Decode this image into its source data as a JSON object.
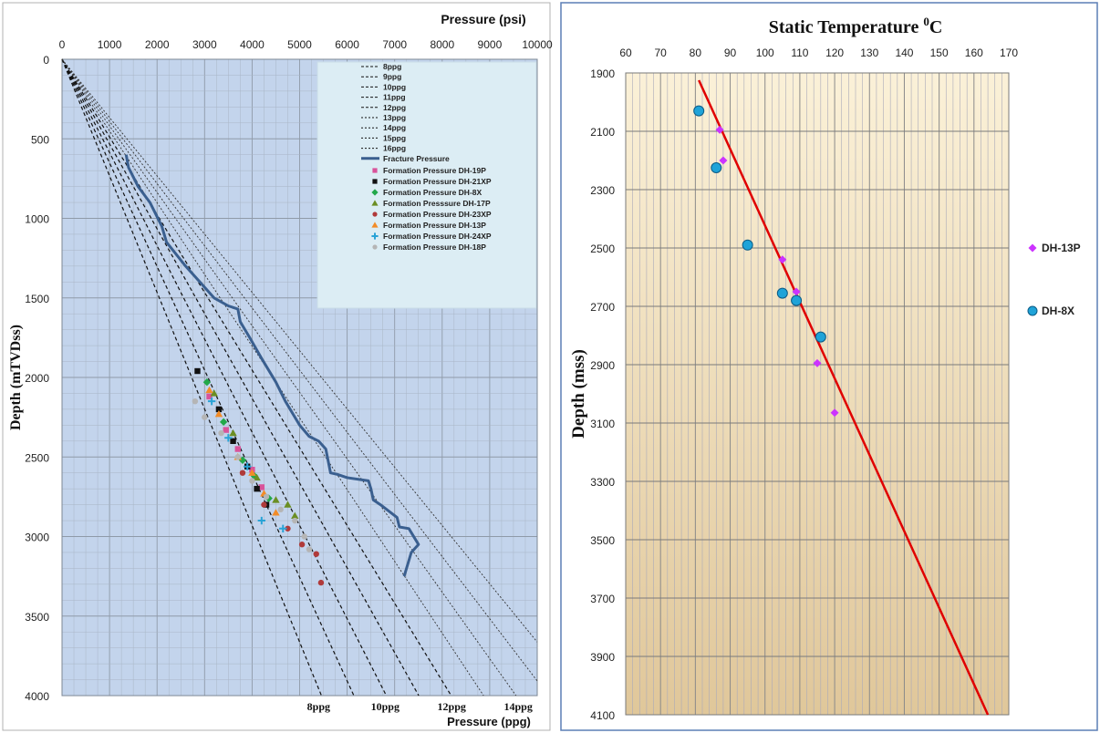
{
  "chart_data": [
    {
      "type": "line",
      "title": "",
      "xlabel_top": "Pressure (psi)",
      "xlabel_bottom": "Pressure (ppg)",
      "ylabel": "Depth (mTVDss)",
      "x_ticks": [
        0,
        1000,
        2000,
        3000,
        4000,
        5000,
        6000,
        7000,
        8000,
        9000,
        10000
      ],
      "x_ticks_text": [
        "0",
        "1000",
        "2000",
        "3000",
        "4000",
        "5000",
        "6000",
        "7000",
        "8000",
        "9000",
        "10000"
      ],
      "y_ticks": [
        0,
        500,
        1000,
        1500,
        2000,
        2500,
        3000,
        3500,
        4000
      ],
      "y_ticks_text": [
        "0",
        "500",
        "1000",
        "1500",
        "2000",
        "2500",
        "3000",
        "3500",
        "4000"
      ],
      "xlim": [
        0,
        10000
      ],
      "ylim": [
        4000,
        0
      ],
      "ppg_labels": [
        {
          "text": "8ppg",
          "psi": 5400
        },
        {
          "text": "10ppg",
          "psi": 6800
        },
        {
          "text": "12ppg",
          "psi": 8200
        },
        {
          "text": "14ppg",
          "psi": 9600
        }
      ],
      "gradient_lines": [
        {
          "name": "8ppg",
          "ppg": 8
        },
        {
          "name": "9ppg",
          "ppg": 9
        },
        {
          "name": "10ppg",
          "ppg": 10
        },
        {
          "name": "11ppg",
          "ppg": 11
        },
        {
          "name": "12ppg",
          "ppg": 12
        },
        {
          "name": "13ppg",
          "ppg": 13
        },
        {
          "name": "14ppg",
          "ppg": 14
        },
        {
          "name": "15ppg",
          "ppg": 15
        },
        {
          "name": "16ppg",
          "ppg": 16
        }
      ],
      "fracture_pressure": {
        "name": "Fracture Pressure",
        "color": "#3a5f8f",
        "points": [
          [
            1350,
            600
          ],
          [
            1400,
            680
          ],
          [
            1600,
            800
          ],
          [
            1850,
            900
          ],
          [
            2100,
            1050
          ],
          [
            2200,
            1150
          ],
          [
            2600,
            1300
          ],
          [
            2900,
            1400
          ],
          [
            3200,
            1500
          ],
          [
            3500,
            1550
          ],
          [
            3700,
            1570
          ],
          [
            3750,
            1650
          ],
          [
            3950,
            1750
          ],
          [
            4200,
            1880
          ],
          [
            4500,
            2030
          ],
          [
            4700,
            2150
          ],
          [
            4900,
            2250
          ],
          [
            5000,
            2300
          ],
          [
            5200,
            2370
          ],
          [
            5400,
            2400
          ],
          [
            5550,
            2450
          ],
          [
            5650,
            2600
          ],
          [
            5800,
            2610
          ],
          [
            6000,
            2630
          ],
          [
            6450,
            2650
          ],
          [
            6500,
            2700
          ],
          [
            6550,
            2770
          ],
          [
            6700,
            2800
          ],
          [
            7050,
            2880
          ],
          [
            7100,
            2940
          ],
          [
            7300,
            2950
          ],
          [
            7500,
            3050
          ],
          [
            7350,
            3100
          ],
          [
            7200,
            3250
          ]
        ]
      },
      "formation_series": [
        {
          "name": "Formation Pressure DH-19P",
          "color": "#d9539a",
          "marker": "square",
          "points": [
            [
              3100,
              2120
            ],
            [
              3450,
              2330
            ],
            [
              3700,
              2450
            ],
            [
              4000,
              2580
            ],
            [
              4200,
              2690
            ]
          ]
        },
        {
          "name": "Formation Pressure DH-21XP",
          "color": "#111111",
          "marker": "square",
          "points": [
            [
              2850,
              1960
            ],
            [
              3300,
              2200
            ],
            [
              3600,
              2400
            ],
            [
              3900,
              2560
            ],
            [
              4100,
              2700
            ],
            [
              4300,
              2800
            ]
          ]
        },
        {
          "name": "Formation Pressure DH-8X",
          "color": "#22a84a",
          "marker": "diamond",
          "points": [
            [
              3050,
              2030
            ],
            [
              3400,
              2280
            ],
            [
              3800,
              2520
            ],
            [
              4050,
              2620
            ],
            [
              4350,
              2760
            ]
          ]
        },
        {
          "name": "Formation Presssure DH-17P",
          "color": "#6b8e23",
          "marker": "triangle",
          "points": [
            [
              3200,
              2100
            ],
            [
              3600,
              2350
            ],
            [
              4100,
              2630
            ],
            [
              4500,
              2770
            ],
            [
              4750,
              2800
            ],
            [
              4900,
              2870
            ]
          ]
        },
        {
          "name": "Formation Pressure DH-23XP",
          "color": "#b03a3a",
          "marker": "circle",
          "points": [
            [
              3800,
              2600
            ],
            [
              4250,
              2800
            ],
            [
              4750,
              2950
            ],
            [
              5050,
              3050
            ],
            [
              5350,
              3110
            ],
            [
              5450,
              3290
            ]
          ]
        },
        {
          "name": "Formation Pressure DH-13P",
          "color": "#f28c28",
          "marker": "triangle",
          "points": [
            [
              3100,
              2080
            ],
            [
              3300,
              2230
            ],
            [
              3700,
              2500
            ],
            [
              4000,
              2600
            ],
            [
              4250,
              2730
            ],
            [
              4500,
              2850
            ]
          ]
        },
        {
          "name": "Formation Pressure DH-24XP",
          "color": "#29a3d6",
          "marker": "plus",
          "points": [
            [
              3150,
              2150
            ],
            [
              3500,
              2380
            ],
            [
              3900,
              2560
            ],
            [
              4200,
              2900
            ],
            [
              4650,
              2950
            ]
          ]
        },
        {
          "name": "Formation Pressure DH-18P",
          "color": "#b5b5b5",
          "marker": "circle",
          "points": [
            [
              2800,
              2150
            ],
            [
              3000,
              2250
            ],
            [
              3350,
              2350
            ],
            [
              3700,
              2500
            ],
            [
              4000,
              2650
            ],
            [
              4300,
              2750
            ],
            [
              4600,
              2830
            ],
            [
              4900,
              2900
            ],
            [
              5100,
              3000
            ],
            [
              5200,
              3080
            ]
          ]
        }
      ]
    },
    {
      "type": "scatter",
      "title": "Static Temperature",
      "title_sup": "0",
      "title_unit": "C",
      "xlabel": "",
      "ylabel": "Depth (mss)",
      "xlim": [
        60,
        170
      ],
      "ylim": [
        4100,
        1900
      ],
      "x_ticks": [
        60,
        70,
        80,
        90,
        100,
        110,
        120,
        130,
        140,
        150,
        160,
        170
      ],
      "x_ticks_text": [
        "60",
        "70",
        "80",
        "90",
        "100",
        "110",
        "120",
        "130",
        "140",
        "150",
        "160",
        "170"
      ],
      "y_ticks": [
        1900,
        2100,
        2300,
        2500,
        2700,
        2900,
        3100,
        3300,
        3500,
        3700,
        3900,
        4100
      ],
      "y_ticks_text": [
        "1900",
        "2100",
        "2300",
        "2500",
        "2700",
        "2900",
        "3100",
        "3300",
        "3500",
        "3700",
        "3900",
        "4100"
      ],
      "series": [
        {
          "name": "DH-13P",
          "color": "#cc33ff",
          "marker": "diamond",
          "points": [
            [
              87,
              2095
            ],
            [
              88,
              2200
            ],
            [
              105,
              2540
            ],
            [
              109,
              2650
            ],
            [
              115,
              2895
            ],
            [
              120,
              3065
            ]
          ]
        },
        {
          "name": "DH-8X",
          "color": "#1fa3d8",
          "marker": "circle",
          "points": [
            [
              81,
              2030
            ],
            [
              86,
              2225
            ],
            [
              95,
              2490
            ],
            [
              105,
              2655
            ],
            [
              109,
              2680
            ],
            [
              116,
              2805
            ]
          ]
        }
      ],
      "trendline": {
        "color": "#e00000",
        "points": [
          [
            81,
            1925
          ],
          [
            164,
            4100
          ]
        ]
      }
    }
  ]
}
